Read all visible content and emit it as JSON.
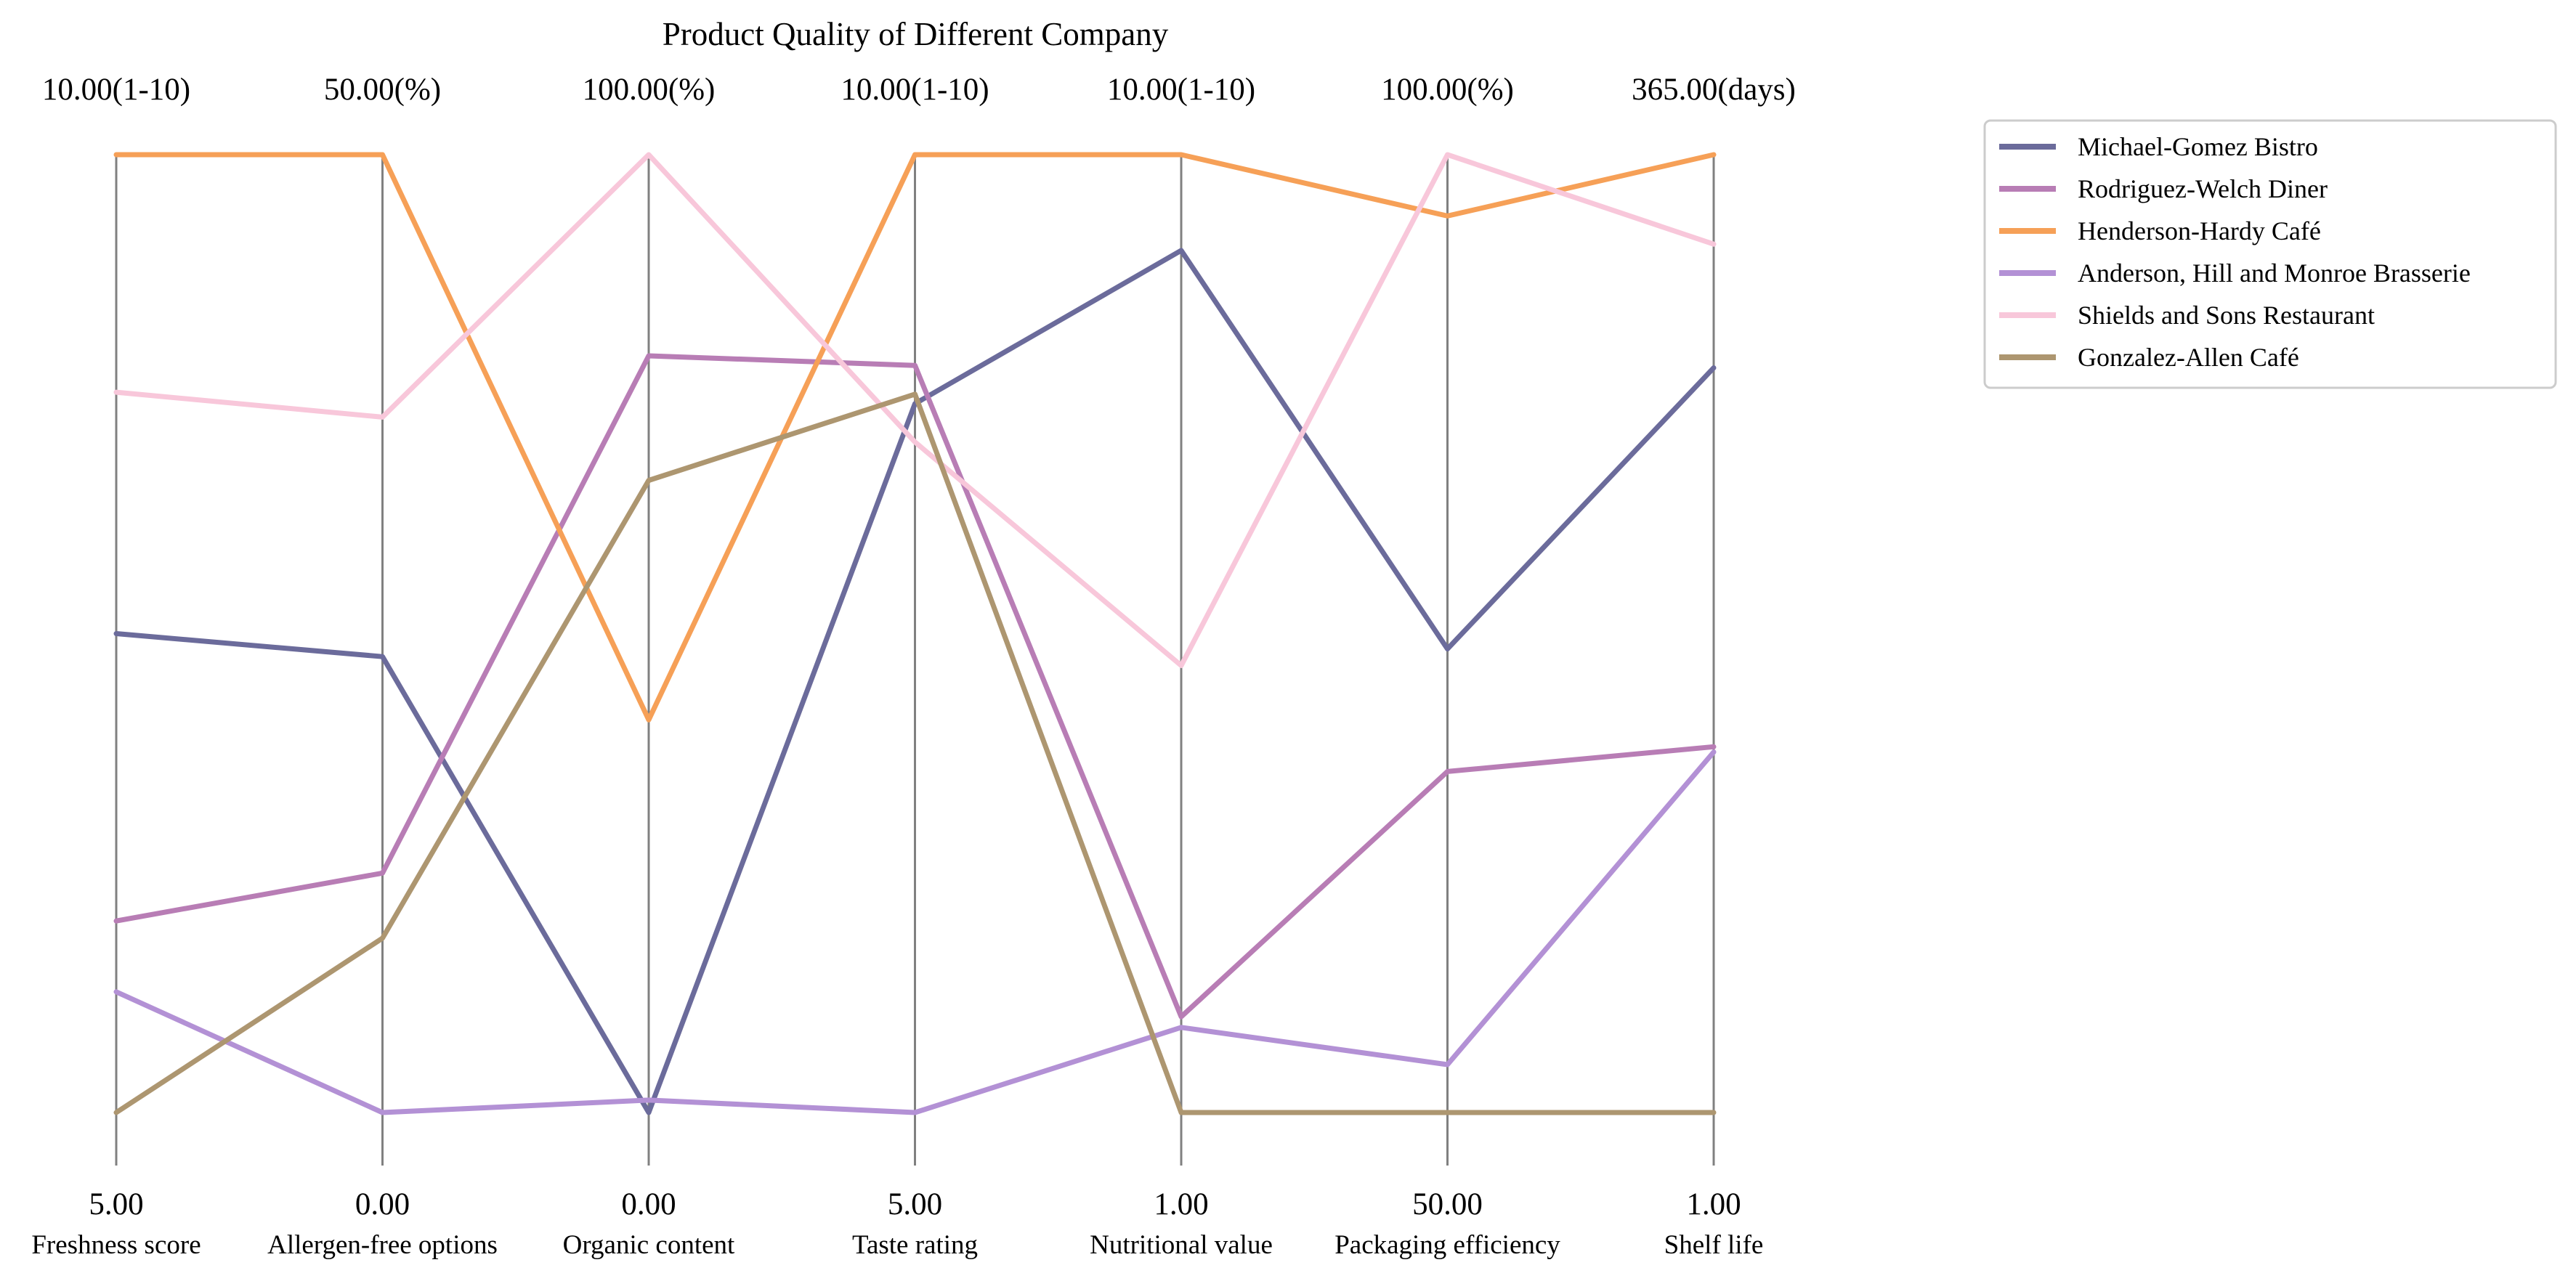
{
  "chart_data": {
    "type": "parallel-coordinates",
    "title": "Product Quality of Different Company",
    "axes": [
      {
        "name": "Freshness score",
        "min": 5,
        "max": 10,
        "min_label": "5.00",
        "max_label": "10.00(1-10)"
      },
      {
        "name": "Allergen-free options",
        "min": 0,
        "max": 50,
        "min_label": "0.00",
        "max_label": "50.00(%)"
      },
      {
        "name": "Organic content",
        "min": 0,
        "max": 100,
        "min_label": "0.00",
        "max_label": "100.00(%)"
      },
      {
        "name": "Taste rating",
        "min": 5,
        "max": 10,
        "min_label": "5.00",
        "max_label": "10.00(1-10)"
      },
      {
        "name": "Nutritional value",
        "min": 1,
        "max": 10,
        "min_label": "1.00",
        "max_label": "10.00(1-10)"
      },
      {
        "name": "Packaging efficiency",
        "min": 50,
        "max": 100,
        "min_label": "50.00",
        "max_label": "100.00(%)"
      },
      {
        "name": "Shelf life",
        "min": 1,
        "max": 365,
        "min_label": "1.00",
        "max_label": "365.00(days)"
      }
    ],
    "series": [
      {
        "name": "Michael-Gomez  Bistro",
        "color": "#6b6b9b",
        "values": [
          7.5,
          23.8,
          0,
          8.7,
          9.1,
          74.2,
          284
        ]
      },
      {
        "name": "Rodriguez-Welch  Diner",
        "color": "#b87db5",
        "values": [
          6.0,
          12.5,
          79,
          8.9,
          1.9,
          67.8,
          140
        ]
      },
      {
        "name": "Henderson-Hardy  Café",
        "color": "#f6a057",
        "values": [
          10.0,
          50.0,
          41,
          10.0,
          10.0,
          96.8,
          365
        ]
      },
      {
        "name": "Anderson, Hill and Monroe  Brasserie",
        "color": "#b391d5",
        "values": [
          5.63,
          0,
          1.3,
          5.0,
          1.8,
          52.5,
          138
        ]
      },
      {
        "name": "Shields and Sons  Restaurant",
        "color": "#f8c7da",
        "values": [
          8.76,
          36.3,
          100,
          8.5,
          5.2,
          100,
          331
        ]
      },
      {
        "name": "Gonzalez-Allen  Café",
        "color": "#ad9670",
        "values": [
          5.0,
          9.1,
          66,
          8.75,
          1.0,
          50,
          1
        ]
      }
    ],
    "legend_position": "top-right",
    "grid": false
  }
}
